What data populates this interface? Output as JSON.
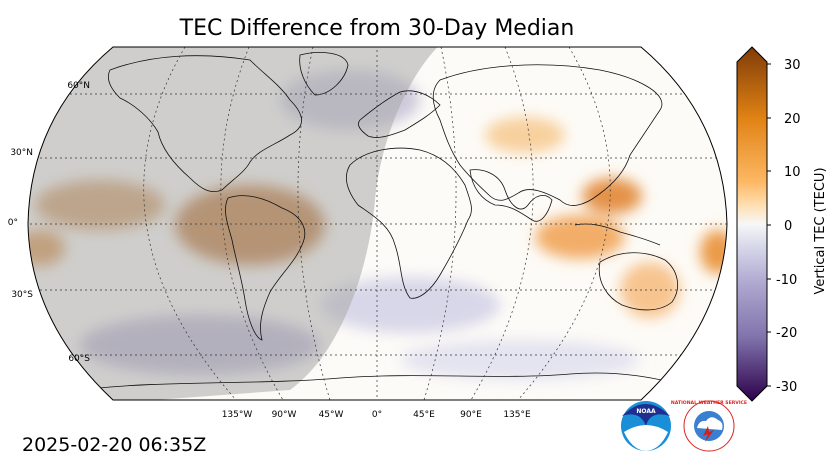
{
  "title": "TEC Difference from 30-Day Median",
  "timestamp": "2025-02-20 06:35Z",
  "colorbar": {
    "label": "Vertical TEC (TECU)",
    "min": -30,
    "max": 30,
    "ticks": [
      "30",
      "20",
      "10",
      "0",
      "-10",
      "-20",
      "-30"
    ],
    "colors": {
      "max": "#7f3b08",
      "high": "#e08214",
      "mid_high": "#fdb863",
      "low_high": "#fee0b6",
      "zero": "#f7f7f7",
      "low_low": "#d8daeb",
      "mid_low": "#b2abd2",
      "low": "#8073ac",
      "min": "#2d004b"
    }
  },
  "map": {
    "projection": "Robinson",
    "lat_labels": [
      "60°N",
      "30°N",
      "0°",
      "30°S",
      "60°S"
    ],
    "lon_labels": [
      "135°W",
      "90°W",
      "45°W",
      "0°",
      "45°E",
      "90°E",
      "135°E"
    ],
    "night_shade": "#a9a9a9"
  },
  "logos": {
    "noaa_text": "NOAA",
    "nws_text": "NATIONAL WEATHER SERVICE"
  }
}
